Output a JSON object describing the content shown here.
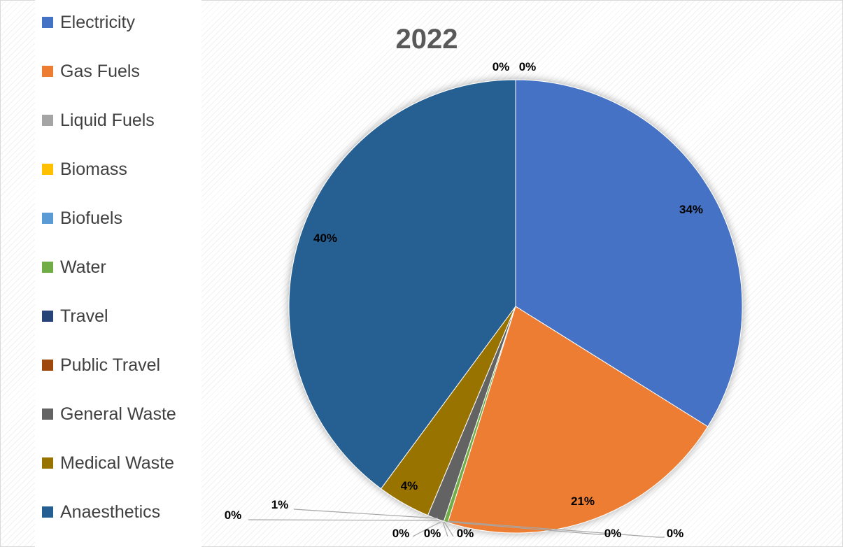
{
  "chart_data": {
    "type": "pie",
    "title": "2022",
    "legend_position": "left",
    "categories": [
      "Electricity",
      "Gas Fuels",
      "Liquid Fuels",
      "Biomass",
      "Biofuels",
      "Water",
      "Travel",
      "Public Travel",
      "General Waste",
      "Medical Waste",
      "Anaesthetics"
    ],
    "values": [
      34,
      21,
      0,
      0,
      0,
      0.3,
      0,
      0,
      1.2,
      3.8,
      40
    ],
    "data_labels": [
      "34%",
      "21%",
      "0%",
      "0%",
      "0%",
      "0%",
      "0%",
      "0%",
      "1%",
      "4%",
      "40%"
    ],
    "colors": [
      "#4472C4",
      "#ED7D31",
      "#A5A5A5",
      "#FFC000",
      "#5B9BD5",
      "#70AD47",
      "#264478",
      "#9E480E",
      "#636363",
      "#997300",
      "#255E91"
    ],
    "extra_labels": [
      "0%",
      "0%",
      "0%",
      "0%",
      "0%"
    ]
  }
}
